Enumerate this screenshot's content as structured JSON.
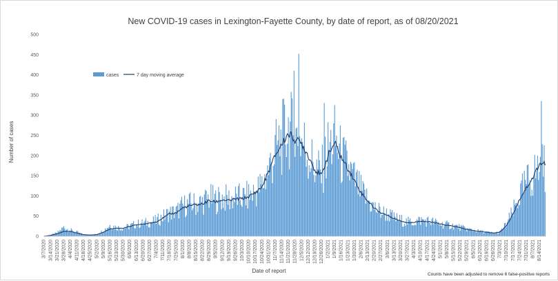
{
  "chart_data": {
    "type": "bar",
    "title": "New COVID-19 cases in Lexington-Fayette County, by date of report, as of 08/20/2021",
    "xlabel": "Date of report",
    "ylabel": "Number of cases",
    "ylim": [
      0,
      500
    ],
    "yticks": [
      0,
      50,
      100,
      150,
      200,
      250,
      300,
      350,
      400,
      450,
      500
    ],
    "grid": false,
    "legend_placement": "top-left",
    "note": "Counts have been adjusted to remove 6 false-positive reports",
    "x_start": "3/7/2020",
    "x_end": "8/20/2021",
    "xtick_labels": [
      "3/7/2020",
      "3/14/2020",
      "3/21/2020",
      "3/28/2020",
      "4/4/2020",
      "4/11/2020",
      "4/18/2020",
      "4/25/2020",
      "5/2/2020",
      "5/9/2020",
      "5/16/2020",
      "5/23/2020",
      "5/30/2020",
      "6/6/2020",
      "6/13/2020",
      "6/20/2020",
      "6/27/2020",
      "7/4/2020",
      "7/11/2020",
      "7/18/2020",
      "7/25/2020",
      "8/1/2020",
      "8/8/2020",
      "8/15/2020",
      "8/22/2020",
      "8/29/2020",
      "9/5/2020",
      "9/12/2020",
      "9/19/2020",
      "9/26/2020",
      "10/3/2020",
      "10/10/2020",
      "10/17/2020",
      "10/24/2020",
      "10/31/2020",
      "11/7/2020",
      "11/14/2020",
      "11/21/2020",
      "11/28/2020",
      "12/5/2020",
      "12/12/2020",
      "12/19/2020",
      "12/26/2020",
      "1/2/2021",
      "1/9/2021",
      "1/16/2021",
      "1/23/2021",
      "1/30/2021",
      "2/6/2021",
      "2/13/2021",
      "2/20/2021",
      "2/27/2021",
      "3/6/2021",
      "3/13/2021",
      "3/20/2021",
      "3/27/2021",
      "4/3/2021",
      "4/10/2021",
      "4/17/2021",
      "4/24/2021",
      "5/1/2021",
      "5/8/2021",
      "5/15/2021",
      "5/22/2021",
      "5/29/2021",
      "6/5/2021",
      "6/12/2021",
      "6/19/2021",
      "6/26/2021",
      "7/3/2021",
      "7/10/2021",
      "7/17/2021",
      "7/24/2021",
      "7/31/2021",
      "8/7/2021",
      "8/14/2021"
    ],
    "colors": {
      "cases": "#5b9bd5",
      "moving_average": "#1f3864"
    },
    "series": [
      {
        "name": "cases",
        "kind": "bar",
        "weekly_values": [
          0,
          3,
          8,
          22,
          15,
          10,
          4,
          3,
          5,
          14,
          28,
          22,
          20,
          25,
          30,
          32,
          35,
          38,
          48,
          58,
          60,
          75,
          80,
          80,
          85,
          95,
          90,
          95,
          92,
          95,
          95,
          100,
          110,
          125,
          165,
          210,
          240,
          270,
          245,
          240,
          205,
          170,
          155,
          215,
          240,
          195,
          170,
          140,
          110,
          90,
          70,
          60,
          55,
          45,
          40,
          35,
          35,
          40,
          38,
          35,
          30,
          28,
          26,
          22,
          18,
          15,
          12,
          10,
          8,
          10,
          30,
          60,
          100,
          130,
          150,
          170
        ],
        "peaks": [
          {
            "date": "12/2/2020",
            "value": 452
          },
          {
            "date": "11/27/2020",
            "value": 410
          },
          {
            "date": "12/29/2020",
            "value": 330
          },
          {
            "date": "8/16/2021",
            "value": 335
          }
        ]
      },
      {
        "name": "7 day moving average",
        "kind": "line",
        "weekly_values": [
          0,
          2,
          6,
          12,
          12,
          8,
          4,
          3,
          4,
          10,
          18,
          20,
          20,
          24,
          28,
          30,
          32,
          36,
          45,
          55,
          58,
          70,
          75,
          78,
          80,
          88,
          85,
          90,
          88,
          92,
          93,
          98,
          108,
          122,
          160,
          200,
          228,
          255,
          240,
          230,
          200,
          165,
          150,
          200,
          232,
          195,
          168,
          138,
          108,
          88,
          70,
          58,
          52,
          44,
          38,
          34,
          34,
          38,
          36,
          34,
          30,
          27,
          25,
          21,
          17,
          14,
          12,
          10,
          8,
          10,
          26,
          55,
          92,
          120,
          145,
          180
        ]
      }
    ]
  }
}
